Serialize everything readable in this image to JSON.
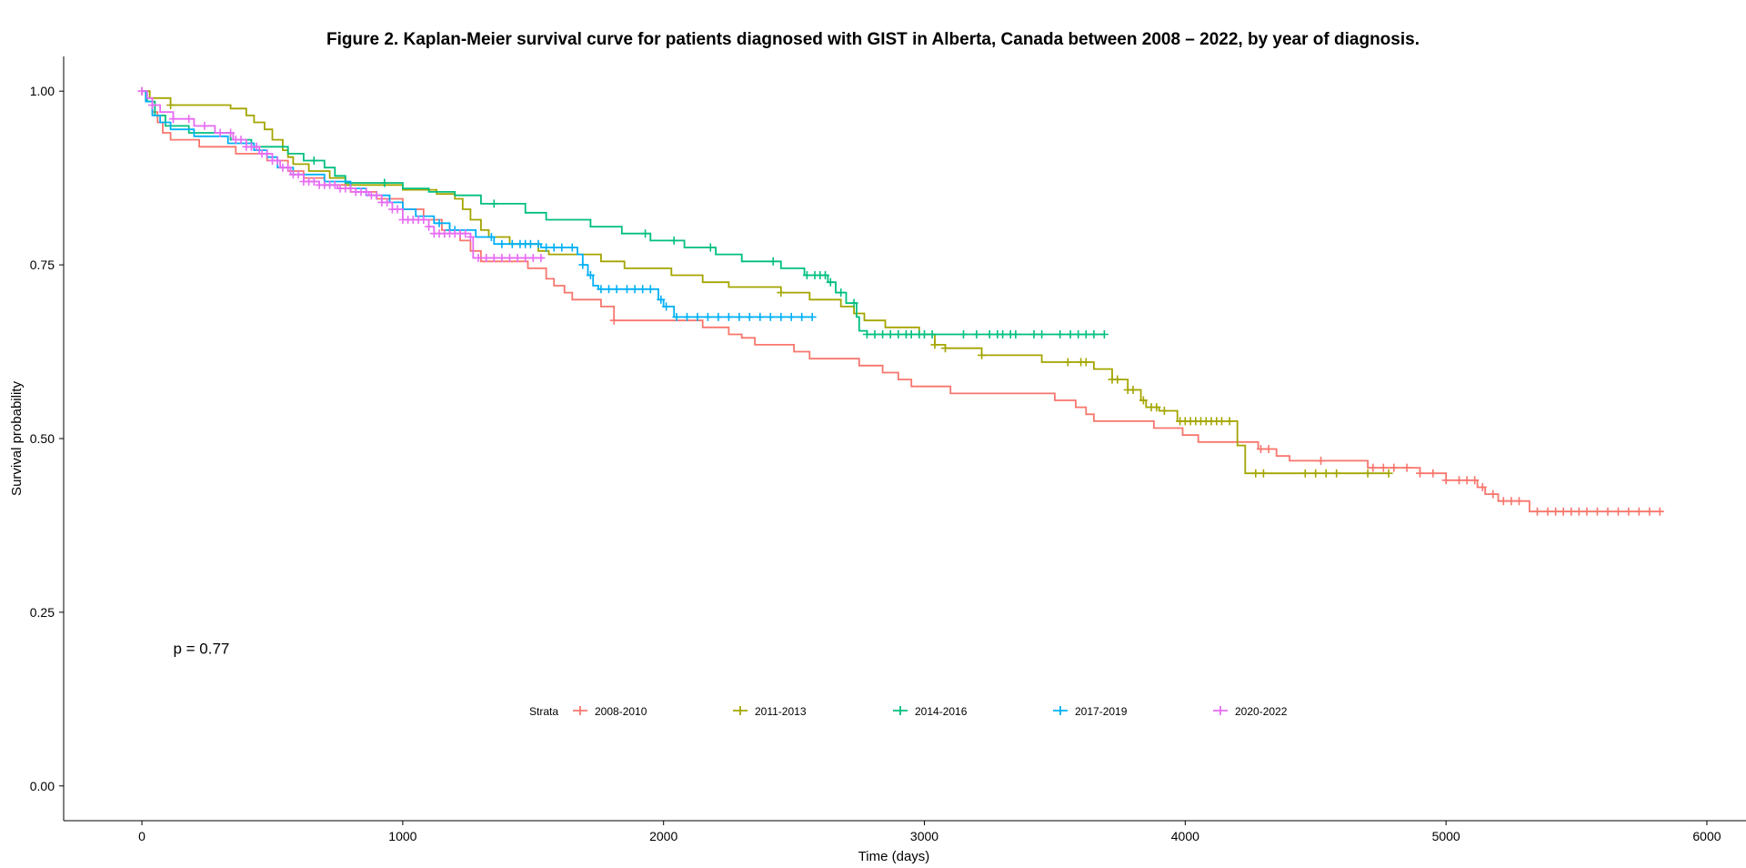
{
  "chart_data": {
    "type": "line",
    "title": "Figure 2. Kaplan-Meier survival curve for patients diagnosed with GIST in Alberta, Canada between 2008 – 2022, by year of diagnosis.",
    "xlabel": "Time (days)",
    "ylabel": "Survival probability",
    "xlim": [
      -300,
      6150
    ],
    "ylim": [
      -0.05,
      1.05
    ],
    "x_ticks": [
      0,
      1000,
      2000,
      3000,
      4000,
      5000,
      6000
    ],
    "x_tick_labels": [
      "0",
      "1000",
      "2000",
      "3000",
      "4000",
      "5000",
      "6000"
    ],
    "y_ticks": [
      0,
      0.25,
      0.5,
      0.75,
      1.0
    ],
    "y_tick_labels": [
      "0.00",
      "0.25",
      "0.50",
      "0.75",
      "1.00"
    ],
    "grid": false,
    "annotation": "p = 0.77",
    "annotation_position": [
      120,
      0.19
    ],
    "legend": {
      "title": "Strata",
      "position": "bottom-center"
    },
    "series": [
      {
        "name": "2008-2010",
        "color": "#F8766D",
        "steps": [
          [
            0,
            1.0
          ],
          [
            15,
            0.985
          ],
          [
            40,
            0.97
          ],
          [
            60,
            0.955
          ],
          [
            80,
            0.94
          ],
          [
            110,
            0.93
          ],
          [
            220,
            0.92
          ],
          [
            360,
            0.91
          ],
          [
            480,
            0.9
          ],
          [
            560,
            0.885
          ],
          [
            620,
            0.875
          ],
          [
            700,
            0.865
          ],
          [
            800,
            0.855
          ],
          [
            900,
            0.845
          ],
          [
            1000,
            0.83
          ],
          [
            1080,
            0.815
          ],
          [
            1150,
            0.8
          ],
          [
            1220,
            0.785
          ],
          [
            1260,
            0.77
          ],
          [
            1300,
            0.755
          ],
          [
            1480,
            0.745
          ],
          [
            1550,
            0.73
          ],
          [
            1580,
            0.72
          ],
          [
            1620,
            0.71
          ],
          [
            1650,
            0.7
          ],
          [
            1760,
            0.69
          ],
          [
            1810,
            0.67
          ],
          [
            2150,
            0.66
          ],
          [
            2250,
            0.65
          ],
          [
            2300,
            0.645
          ],
          [
            2350,
            0.635
          ],
          [
            2500,
            0.625
          ],
          [
            2560,
            0.615
          ],
          [
            2750,
            0.605
          ],
          [
            2840,
            0.595
          ],
          [
            2900,
            0.585
          ],
          [
            2950,
            0.575
          ],
          [
            3100,
            0.565
          ],
          [
            3500,
            0.555
          ],
          [
            3580,
            0.545
          ],
          [
            3620,
            0.535
          ],
          [
            3650,
            0.525
          ],
          [
            3880,
            0.515
          ],
          [
            3990,
            0.505
          ],
          [
            4050,
            0.495
          ],
          [
            4280,
            0.485
          ],
          [
            4350,
            0.475
          ],
          [
            4400,
            0.468
          ],
          [
            4700,
            0.458
          ],
          [
            4900,
            0.45
          ],
          [
            5000,
            0.44
          ],
          [
            5120,
            0.43
          ],
          [
            5150,
            0.42
          ],
          [
            5200,
            0.41
          ],
          [
            5320,
            0.395
          ],
          [
            5830,
            0.395
          ]
        ],
        "censor": [
          0.1,
          1810,
          4290,
          4320,
          4520,
          4720,
          4760,
          4800,
          4850,
          4900,
          4950,
          5000,
          5050,
          5080,
          5110,
          5140,
          5180,
          5220,
          5250,
          5280,
          5350,
          5390,
          5420,
          5450,
          5480,
          5510,
          5540,
          5580,
          5620,
          5660,
          5700,
          5740,
          5780,
          5820
        ]
      },
      {
        "name": "2011-2013",
        "color": "#A3A500",
        "steps": [
          [
            0,
            1.0
          ],
          [
            30,
            0.99
          ],
          [
            110,
            0.98
          ],
          [
            340,
            0.975
          ],
          [
            400,
            0.965
          ],
          [
            430,
            0.955
          ],
          [
            470,
            0.945
          ],
          [
            500,
            0.93
          ],
          [
            540,
            0.915
          ],
          [
            560,
            0.905
          ],
          [
            580,
            0.895
          ],
          [
            640,
            0.885
          ],
          [
            720,
            0.875
          ],
          [
            780,
            0.865
          ],
          [
            1000,
            0.858
          ],
          [
            1130,
            0.852
          ],
          [
            1200,
            0.845
          ],
          [
            1230,
            0.83
          ],
          [
            1260,
            0.815
          ],
          [
            1300,
            0.8
          ],
          [
            1330,
            0.79
          ],
          [
            1410,
            0.78
          ],
          [
            1520,
            0.77
          ],
          [
            1560,
            0.765
          ],
          [
            1760,
            0.755
          ],
          [
            1850,
            0.745
          ],
          [
            2030,
            0.735
          ],
          [
            2150,
            0.725
          ],
          [
            2250,
            0.718
          ],
          [
            2450,
            0.71
          ],
          [
            2560,
            0.7
          ],
          [
            2680,
            0.69
          ],
          [
            2730,
            0.68
          ],
          [
            2770,
            0.67
          ],
          [
            2850,
            0.66
          ],
          [
            2980,
            0.65
          ],
          [
            3040,
            0.635
          ],
          [
            3080,
            0.63
          ],
          [
            3220,
            0.62
          ],
          [
            3450,
            0.61
          ],
          [
            3650,
            0.6
          ],
          [
            3720,
            0.585
          ],
          [
            3780,
            0.57
          ],
          [
            3830,
            0.555
          ],
          [
            3850,
            0.545
          ],
          [
            3900,
            0.54
          ],
          [
            3970,
            0.525
          ],
          [
            4200,
            0.49
          ],
          [
            4230,
            0.45
          ],
          [
            4780,
            0.45
          ]
        ],
        "censor": [
          110,
          2450,
          3040,
          3080,
          3220,
          3550,
          3600,
          3620,
          3720,
          3740,
          3780,
          3800,
          3840,
          3870,
          3890,
          3920,
          3980,
          4000,
          4020,
          4040,
          4060,
          4080,
          4100,
          4120,
          4140,
          4170,
          4270,
          4300,
          4460,
          4500,
          4540,
          4580,
          4700,
          4780
        ]
      },
      {
        "name": "2014-2016",
        "color": "#00BF7D",
        "steps": [
          [
            0,
            1.0
          ],
          [
            20,
            0.985
          ],
          [
            50,
            0.965
          ],
          [
            90,
            0.95
          ],
          [
            180,
            0.94
          ],
          [
            340,
            0.93
          ],
          [
            420,
            0.92
          ],
          [
            560,
            0.91
          ],
          [
            620,
            0.9
          ],
          [
            700,
            0.89
          ],
          [
            740,
            0.878
          ],
          [
            780,
            0.868
          ],
          [
            1000,
            0.86
          ],
          [
            1100,
            0.855
          ],
          [
            1200,
            0.85
          ],
          [
            1300,
            0.838
          ],
          [
            1470,
            0.825
          ],
          [
            1550,
            0.815
          ],
          [
            1720,
            0.805
          ],
          [
            1840,
            0.795
          ],
          [
            1950,
            0.785
          ],
          [
            2080,
            0.775
          ],
          [
            2200,
            0.765
          ],
          [
            2300,
            0.755
          ],
          [
            2450,
            0.745
          ],
          [
            2540,
            0.735
          ],
          [
            2630,
            0.725
          ],
          [
            2660,
            0.71
          ],
          [
            2700,
            0.695
          ],
          [
            2740,
            0.675
          ],
          [
            2750,
            0.655
          ],
          [
            2780,
            0.65
          ],
          [
            3690,
            0.65
          ]
        ],
        "censor": [
          660,
          930,
          1350,
          1930,
          2040,
          2180,
          2420,
          2550,
          2580,
          2600,
          2620,
          2640,
          2680,
          2730,
          2780,
          2810,
          2840,
          2870,
          2900,
          2930,
          2950,
          2980,
          3000,
          3030,
          3150,
          3200,
          3250,
          3280,
          3300,
          3330,
          3350,
          3420,
          3450,
          3520,
          3560,
          3590,
          3620,
          3650,
          3690
        ]
      },
      {
        "name": "2017-2019",
        "color": "#00B0F6",
        "steps": [
          [
            0,
            1.0
          ],
          [
            15,
            0.985
          ],
          [
            40,
            0.965
          ],
          [
            70,
            0.955
          ],
          [
            110,
            0.945
          ],
          [
            200,
            0.935
          ],
          [
            330,
            0.925
          ],
          [
            430,
            0.915
          ],
          [
            480,
            0.905
          ],
          [
            520,
            0.89
          ],
          [
            580,
            0.88
          ],
          [
            700,
            0.87
          ],
          [
            800,
            0.86
          ],
          [
            860,
            0.85
          ],
          [
            950,
            0.84
          ],
          [
            1000,
            0.83
          ],
          [
            1050,
            0.82
          ],
          [
            1120,
            0.81
          ],
          [
            1180,
            0.8
          ],
          [
            1280,
            0.79
          ],
          [
            1350,
            0.78
          ],
          [
            1530,
            0.775
          ],
          [
            1670,
            0.765
          ],
          [
            1690,
            0.75
          ],
          [
            1710,
            0.735
          ],
          [
            1730,
            0.72
          ],
          [
            1750,
            0.715
          ],
          [
            1980,
            0.7
          ],
          [
            2000,
            0.69
          ],
          [
            2040,
            0.675
          ],
          [
            2570,
            0.675
          ]
        ],
        "censor": [
          900,
          1140,
          1180,
          1200,
          1340,
          1380,
          1420,
          1450,
          1470,
          1490,
          1520,
          1550,
          1580,
          1610,
          1650,
          1690,
          1720,
          1760,
          1790,
          1820,
          1860,
          1890,
          1920,
          1950,
          1990,
          2010,
          2050,
          2090,
          2130,
          2170,
          2210,
          2250,
          2290,
          2330,
          2370,
          2410,
          2450,
          2490,
          2530,
          2570
        ]
      },
      {
        "name": "2020-2022",
        "color": "#E76BF3",
        "steps": [
          [
            0,
            1.0
          ],
          [
            20,
            0.99
          ],
          [
            40,
            0.98
          ],
          [
            70,
            0.97
          ],
          [
            120,
            0.96
          ],
          [
            200,
            0.95
          ],
          [
            280,
            0.94
          ],
          [
            350,
            0.93
          ],
          [
            400,
            0.92
          ],
          [
            450,
            0.91
          ],
          [
            500,
            0.9
          ],
          [
            530,
            0.89
          ],
          [
            570,
            0.88
          ],
          [
            620,
            0.87
          ],
          [
            680,
            0.865
          ],
          [
            750,
            0.86
          ],
          [
            820,
            0.855
          ],
          [
            870,
            0.85
          ],
          [
            920,
            0.84
          ],
          [
            960,
            0.83
          ],
          [
            1000,
            0.815
          ],
          [
            1100,
            0.805
          ],
          [
            1120,
            0.795
          ],
          [
            1260,
            0.79
          ],
          [
            1270,
            0.76
          ],
          [
            1540,
            0.76
          ]
        ],
        "censor": [
          0,
          40,
          120,
          180,
          240,
          300,
          340,
          360,
          380,
          400,
          420,
          440,
          460,
          480,
          500,
          520,
          540,
          560,
          580,
          600,
          620,
          640,
          660,
          680,
          700,
          720,
          740,
          760,
          780,
          800,
          820,
          840,
          860,
          880,
          900,
          920,
          940,
          960,
          980,
          1000,
          1020,
          1040,
          1060,
          1080,
          1100,
          1120,
          1140,
          1160,
          1180,
          1200,
          1220,
          1240,
          1260,
          1290,
          1320,
          1350,
          1380,
          1410,
          1440,
          1470,
          1500,
          1530
        ]
      }
    ]
  }
}
